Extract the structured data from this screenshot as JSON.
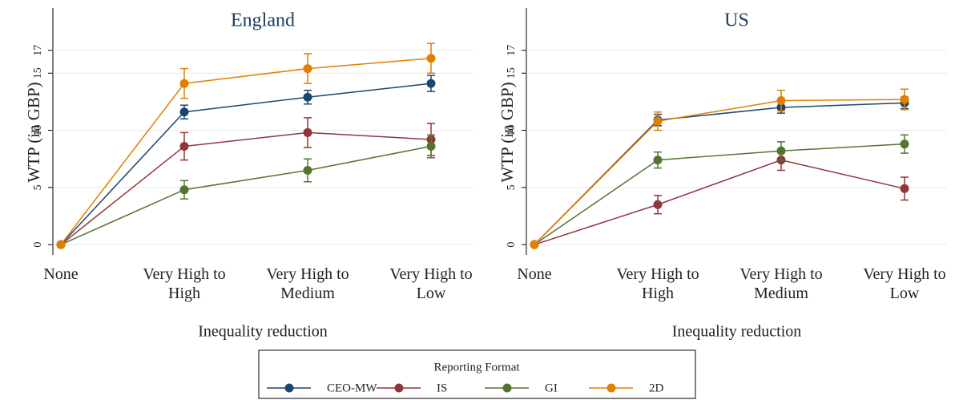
{
  "chart_data": [
    {
      "type": "line",
      "title": "England",
      "x_label": "Inequality reduction",
      "y_label": "WTP (in GBP)",
      "legend_title": "Reporting Format",
      "categories": [
        "None",
        "Very High to High",
        "Very High to Medium",
        "Very High to Low"
      ],
      "ylim": [
        -0.9,
        20.7
      ],
      "yticks": [
        0,
        5,
        10,
        15,
        17
      ],
      "grid": true,
      "series": [
        {
          "name": "CEO-MW",
          "color": "#1a476f",
          "values": [
            0,
            11.6,
            12.9,
            14.1
          ],
          "errors": [
            0,
            0.6,
            0.6,
            0.7
          ]
        },
        {
          "name": "IS",
          "color": "#90353b",
          "values": [
            0,
            8.6,
            9.8,
            9.2
          ],
          "errors": [
            0,
            1.2,
            1.3,
            1.4
          ]
        },
        {
          "name": "GI",
          "color": "#55752f",
          "values": [
            0,
            4.8,
            6.5,
            8.6
          ],
          "errors": [
            0,
            0.8,
            1.0,
            1.0
          ]
        },
        {
          "name": "2D",
          "color": "#e37e00",
          "values": [
            0,
            14.1,
            15.4,
            16.3
          ],
          "errors": [
            0,
            1.3,
            1.3,
            1.3
          ]
        }
      ]
    },
    {
      "type": "line",
      "title": "US",
      "x_label": "Inequality reduction",
      "y_label": "WTP (in GBP)",
      "categories": [
        "None",
        "Very High to High",
        "Very High to Medium",
        "Very High to Low"
      ],
      "ylim": [
        -0.9,
        20.7
      ],
      "yticks": [
        0,
        5,
        10,
        15,
        17
      ],
      "grid": true,
      "series": [
        {
          "name": "CEO-MW",
          "color": "#1a476f",
          "values": [
            0,
            10.9,
            12.0,
            12.4
          ],
          "errors": [
            0,
            0.5,
            0.5,
            0.5
          ]
        },
        {
          "name": "IS",
          "color": "#90353b",
          "values": [
            0,
            3.5,
            7.4,
            4.9
          ],
          "errors": [
            0,
            0.8,
            0.9,
            1.0
          ]
        },
        {
          "name": "GI",
          "color": "#55752f",
          "values": [
            0,
            7.4,
            8.2,
            8.8
          ],
          "errors": [
            0,
            0.7,
            0.8,
            0.8
          ]
        },
        {
          "name": "2D",
          "color": "#e37e00",
          "values": [
            0,
            10.8,
            12.6,
            12.7
          ],
          "errors": [
            0,
            0.8,
            0.9,
            0.9
          ]
        }
      ]
    }
  ]
}
